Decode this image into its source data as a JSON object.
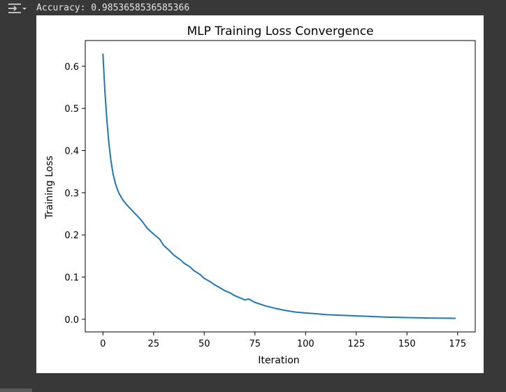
{
  "output": {
    "text": "Accuracy: 0.9853658536585366",
    "icon": "output-toggle-icon"
  },
  "chart_data": {
    "type": "line",
    "title": "MLP Training Loss Convergence",
    "xlabel": "Iteration",
    "ylabel": "Training Loss",
    "xlim": [
      -8.7,
      183.7
    ],
    "ylim": [
      -0.03,
      0.661
    ],
    "xticks": [
      0,
      25,
      50,
      75,
      100,
      125,
      150,
      175
    ],
    "yticks": [
      0.0,
      0.1,
      0.2,
      0.3,
      0.4,
      0.5,
      0.6
    ],
    "xtick_labels": [
      "0",
      "25",
      "50",
      "75",
      "100",
      "125",
      "150",
      "175"
    ],
    "ytick_labels": [
      "0.0",
      "0.1",
      "0.2",
      "0.3",
      "0.4",
      "0.5",
      "0.6"
    ],
    "grid": false,
    "series": [
      {
        "color": "#1f77b4",
        "x": [
          0,
          1,
          2,
          3,
          4,
          5,
          6,
          7,
          8,
          10,
          12,
          15,
          18,
          20,
          22,
          25,
          28,
          30,
          33,
          35,
          38,
          40,
          43,
          45,
          48,
          50,
          53,
          55,
          58,
          60,
          63,
          65,
          68,
          70,
          72,
          75,
          80,
          85,
          90,
          95,
          100,
          105,
          110,
          115,
          120,
          125,
          130,
          135,
          140,
          145,
          150,
          155,
          160,
          165,
          170,
          174
        ],
        "values": [
          0.63,
          0.54,
          0.47,
          0.415,
          0.375,
          0.345,
          0.325,
          0.31,
          0.298,
          0.282,
          0.27,
          0.255,
          0.24,
          0.228,
          0.215,
          0.202,
          0.19,
          0.175,
          0.162,
          0.152,
          0.142,
          0.133,
          0.124,
          0.115,
          0.106,
          0.097,
          0.089,
          0.082,
          0.074,
          0.068,
          0.062,
          0.056,
          0.05,
          0.046,
          0.048,
          0.04,
          0.032,
          0.026,
          0.021,
          0.017,
          0.015,
          0.013,
          0.011,
          0.01,
          0.009,
          0.008,
          0.007,
          0.006,
          0.005,
          0.0045,
          0.004,
          0.0035,
          0.003,
          0.0028,
          0.0025,
          0.0022
        ]
      }
    ]
  }
}
